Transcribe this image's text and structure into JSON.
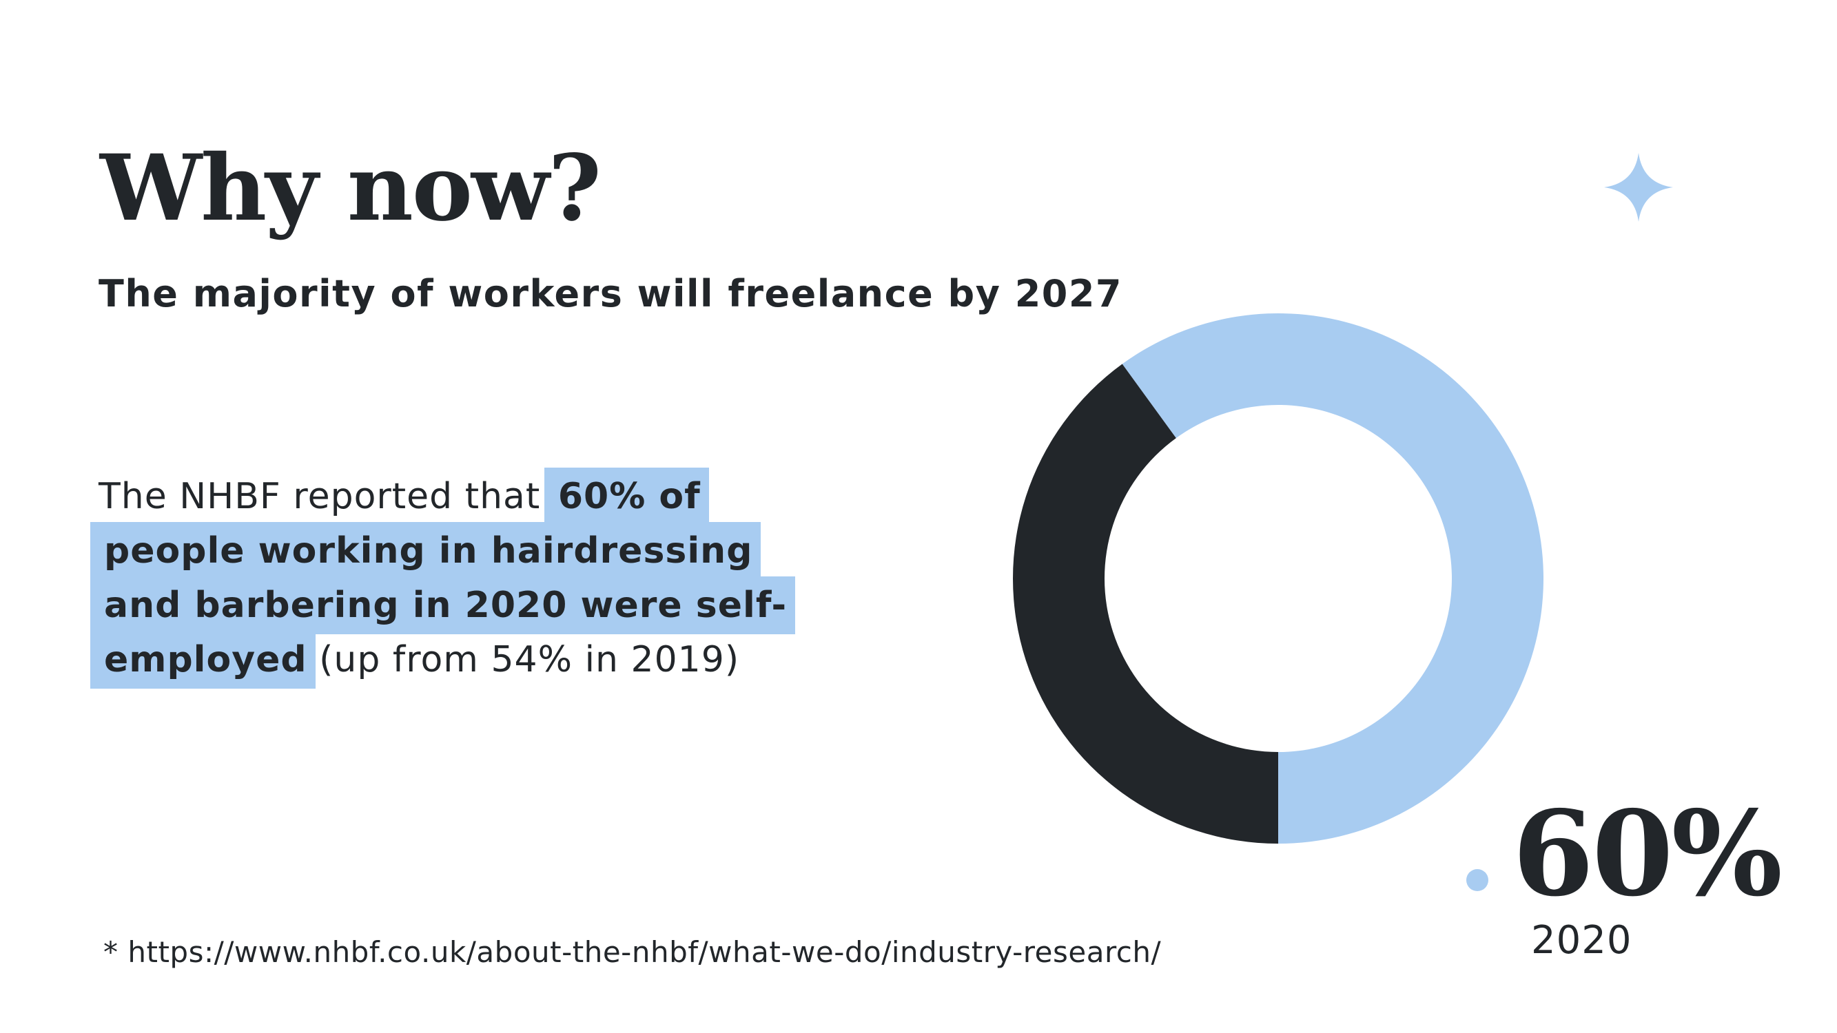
{
  "slide": {
    "title": "Why now?",
    "subtitle": "The majority of workers will freelance by 2027",
    "body": {
      "lead": "The NHBF reported that",
      "highlight": "60% of people working in hairdressing and barbering in 2020 were self-employed",
      "tail": "(up from 54% in 2019)"
    },
    "footnote": "* https://www.nhbf.co.uk/about-the-nhbf/what-we-do/industry-research/",
    "stat": {
      "value": "60%",
      "year": "2020"
    }
  },
  "colors": {
    "accent": "#a8ccf1",
    "dark": "#22262a",
    "background": "#ffffff"
  },
  "icons": {
    "decoration": "sparkle-icon",
    "marker": "dot-icon"
  },
  "chart_data": {
    "type": "pie",
    "values": [
      60,
      40
    ],
    "colors": [
      "#a8ccf1",
      "#22262a"
    ],
    "donut": true,
    "title": "",
    "annotations": [
      "60%",
      "2020"
    ]
  }
}
